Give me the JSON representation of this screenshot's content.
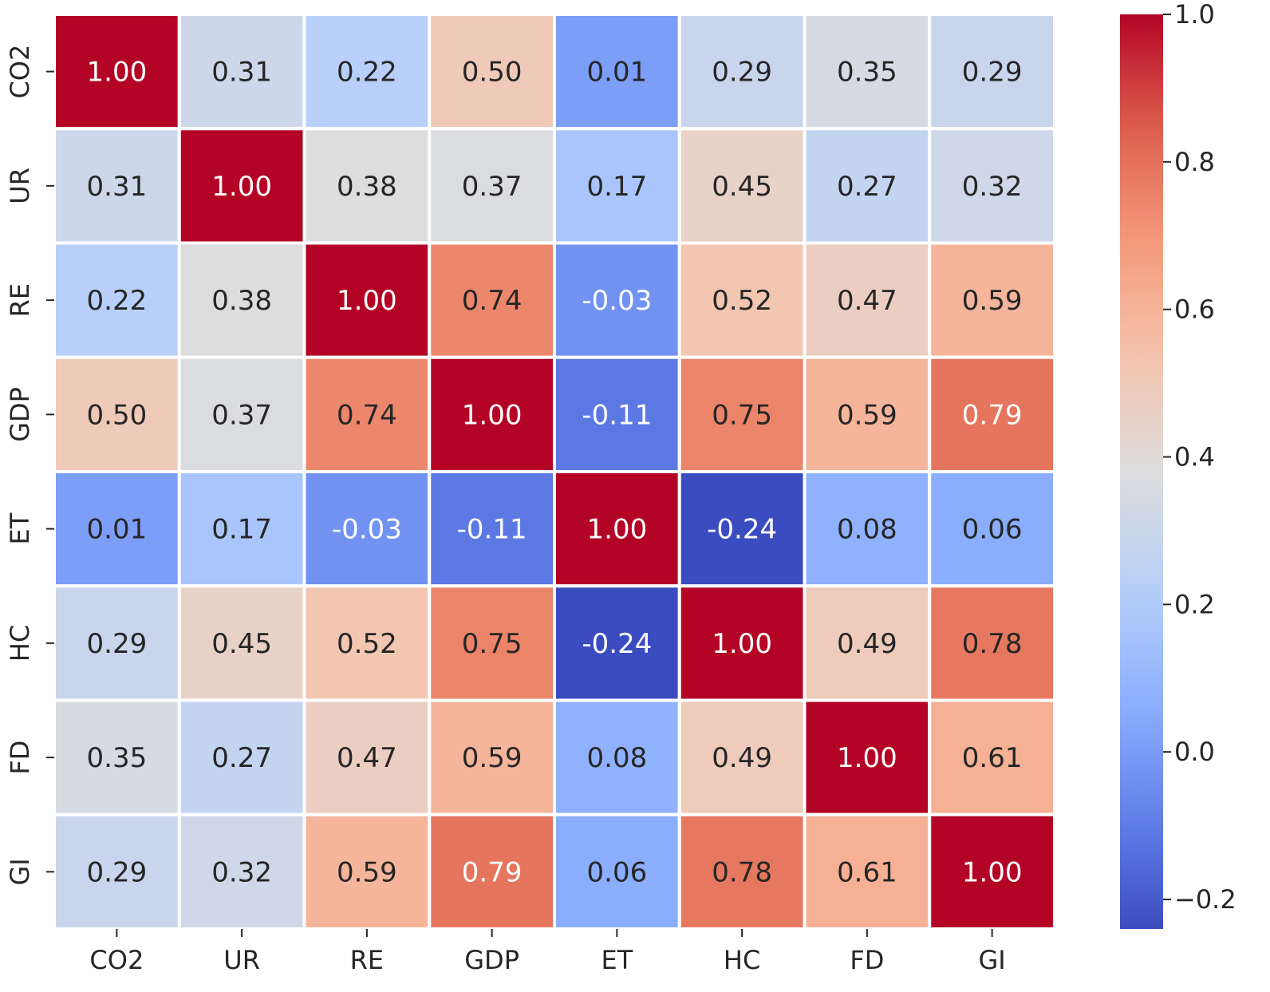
{
  "chart_data": {
    "type": "heatmap",
    "title": "",
    "xlabel": "",
    "ylabel": "",
    "x_categories": [
      "CO2",
      "UR",
      "RE",
      "GDP",
      "ET",
      "HC",
      "FD",
      "GI"
    ],
    "y_categories": [
      "CO2",
      "UR",
      "RE",
      "GDP",
      "ET",
      "HC",
      "FD",
      "GI"
    ],
    "values": [
      [
        1.0,
        0.31,
        0.22,
        0.5,
        0.01,
        0.29,
        0.35,
        0.29
      ],
      [
        0.31,
        1.0,
        0.38,
        0.37,
        0.17,
        0.45,
        0.27,
        0.32
      ],
      [
        0.22,
        0.38,
        1.0,
        0.74,
        -0.03,
        0.52,
        0.47,
        0.59
      ],
      [
        0.5,
        0.37,
        0.74,
        1.0,
        -0.11,
        0.75,
        0.59,
        0.79
      ],
      [
        0.01,
        0.17,
        -0.03,
        -0.11,
        1.0,
        -0.24,
        0.08,
        0.06
      ],
      [
        0.29,
        0.45,
        0.52,
        0.75,
        -0.24,
        1.0,
        0.49,
        0.78
      ],
      [
        0.35,
        0.27,
        0.47,
        0.59,
        0.08,
        0.49,
        1.0,
        0.61
      ],
      [
        0.29,
        0.32,
        0.59,
        0.79,
        0.06,
        0.78,
        0.61,
        1.0
      ]
    ],
    "cell_labels": [
      [
        "1.00",
        "0.31",
        "0.22",
        "0.50",
        "0.01",
        "0.29",
        "0.35",
        "0.29"
      ],
      [
        "0.31",
        "1.00",
        "0.38",
        "0.37",
        "0.17",
        "0.45",
        "0.27",
        "0.32"
      ],
      [
        "0.22",
        "0.38",
        "1.00",
        "0.74",
        "-0.03",
        "0.52",
        "0.47",
        "0.59"
      ],
      [
        "0.50",
        "0.37",
        "0.74",
        "1.00",
        "-0.11",
        "0.75",
        "0.59",
        "0.79"
      ],
      [
        "0.01",
        "0.17",
        "-0.03",
        "-0.11",
        "1.00",
        "-0.24",
        "0.08",
        "0.06"
      ],
      [
        "0.29",
        "0.45",
        "0.52",
        "0.75",
        "-0.24",
        "1.00",
        "0.49",
        "0.78"
      ],
      [
        "0.35",
        "0.27",
        "0.47",
        "0.59",
        "0.08",
        "0.49",
        "1.00",
        "0.61"
      ],
      [
        "0.29",
        "0.32",
        "0.59",
        "0.79",
        "0.06",
        "0.78",
        "0.61",
        "1.00"
      ]
    ],
    "colormap": "coolwarm",
    "colorbar": {
      "range": [
        -0.24,
        1.0
      ],
      "ticks": [
        1.0,
        0.8,
        0.6,
        0.4,
        0.2,
        0.0,
        -0.2
      ],
      "tick_labels": [
        "1.0",
        "0.8",
        "0.6",
        "0.4",
        "0.2",
        "0.0",
        "−0.2"
      ]
    },
    "legend": "right"
  }
}
